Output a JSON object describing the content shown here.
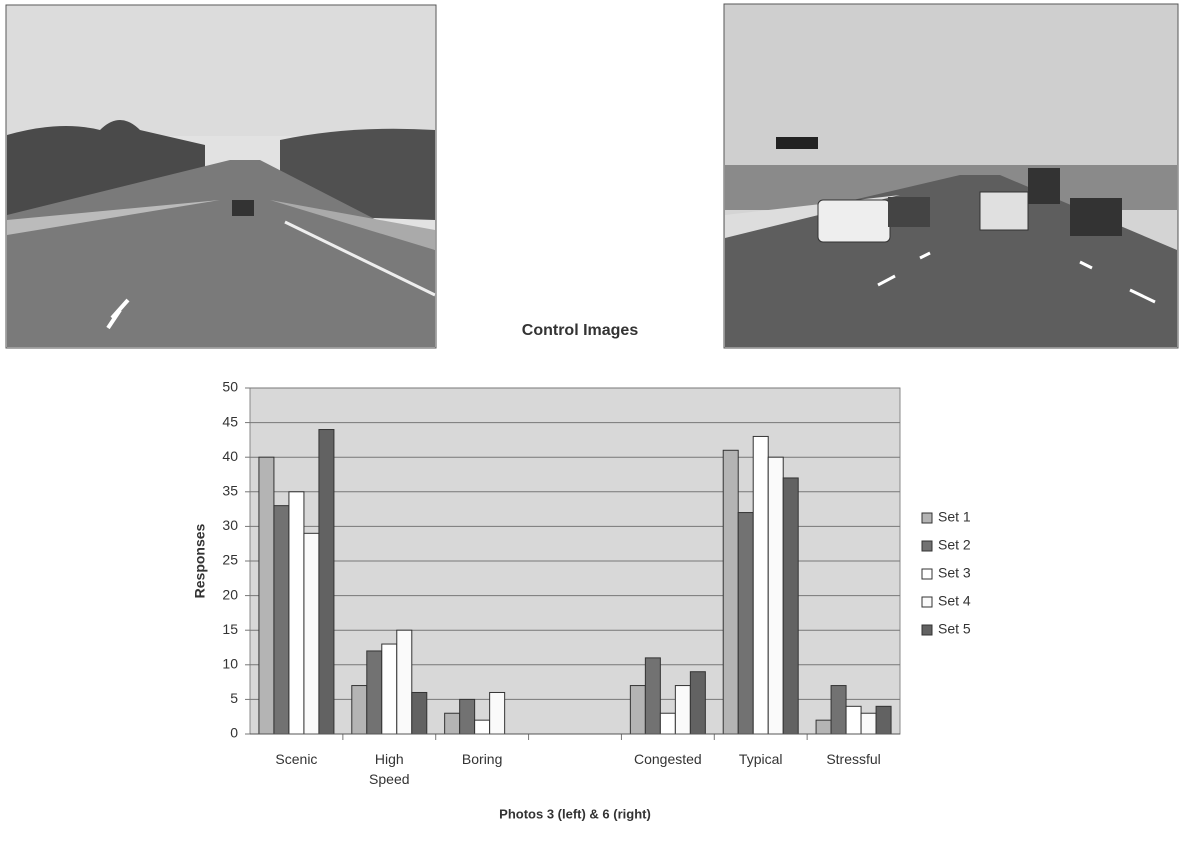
{
  "chart_data": {
    "type": "bar",
    "title": "Control Images",
    "x_label": "Photos 3 (left) & 6 (right)",
    "y_label": "Responses",
    "categories": [
      "Scenic",
      "High Speed",
      "Boring",
      null,
      "Congested",
      "Typical",
      "Stressful"
    ],
    "series": [
      {
        "name": "Set 1",
        "color": "#b4b4b4",
        "values": [
          40,
          7,
          3,
          null,
          7,
          41,
          2
        ]
      },
      {
        "name": "Set 2",
        "color": "#727272",
        "values": [
          33,
          12,
          5,
          null,
          11,
          32,
          7
        ]
      },
      {
        "name": "Set 3",
        "color": "#ffffff",
        "values": [
          35,
          13,
          2,
          null,
          3,
          43,
          4
        ]
      },
      {
        "name": "Set 4",
        "color": "#fafafa",
        "values": [
          29,
          15,
          6,
          null,
          7,
          40,
          3
        ]
      },
      {
        "name": "Set 5",
        "color": "#626262",
        "values": [
          44,
          6,
          0,
          null,
          9,
          37,
          4
        ]
      }
    ],
    "ylim": [
      0,
      50
    ],
    "yticks": [
      0,
      5,
      10,
      15,
      20,
      25,
      30,
      35,
      40,
      45,
      50
    ],
    "grid": true,
    "legend": "right"
  }
}
